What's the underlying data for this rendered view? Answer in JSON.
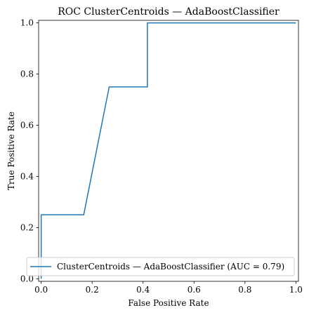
{
  "chart_data": {
    "type": "line",
    "title": "ROC ClusterCentroids — AdaBoostClassifier",
    "xlabel": "False Positive Rate",
    "ylabel": "True Positive Rate",
    "xlim": [
      -0.01,
      1.01
    ],
    "ylim": [
      -0.01,
      1.01
    ],
    "xticks": [
      0.0,
      0.2,
      0.4,
      0.6,
      0.8,
      1.0
    ],
    "yticks": [
      0.0,
      0.2,
      0.4,
      0.6,
      0.8,
      1.0
    ],
    "grid": false,
    "legend_position": "lower-right",
    "series": [
      {
        "name": "ClusterCentroids — AdaBoostClassifier (AUC = 0.79)",
        "color": "#1f77b4",
        "x": [
          0.0,
          0.0,
          0.0,
          0.167,
          0.267,
          0.417,
          0.417,
          1.0
        ],
        "y": [
          0.0,
          0.06,
          0.25,
          0.25,
          0.75,
          0.75,
          1.0,
          1.0
        ]
      }
    ]
  }
}
